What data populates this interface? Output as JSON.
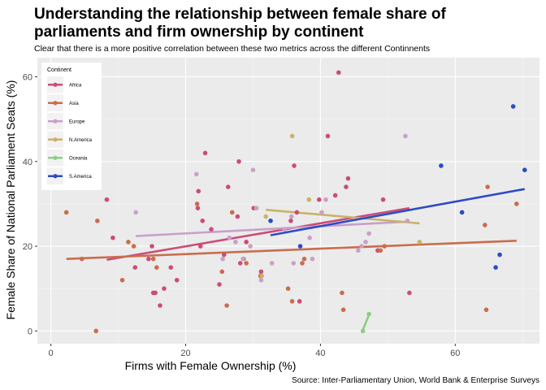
{
  "chart_data": {
    "type": "scatter",
    "title_line1": "Understanding the relationship between female share of",
    "title_line2": "parliaments and firm ownership by continent",
    "subtitle": "Clear that there is a more positive correlation between these two metrics across the different Continnents",
    "xlabel": "Firms with Female Ownership (%)",
    "ylabel": "Female Share of National Parliament Seats (%)",
    "caption": "Source: Inter-Parliamentary Union, World Bank & Enterprise Surveys",
    "xlim": [
      -2,
      72.5
    ],
    "ylim": [
      -3,
      64.5
    ],
    "xticks": [
      0,
      20,
      40,
      60
    ],
    "yticks": [
      0,
      20,
      40,
      60
    ],
    "grid": true,
    "legend": {
      "title": "Continent",
      "position": "top-left inside"
    },
    "series": [
      {
        "name": "Africa",
        "color": "#CC4C78",
        "points": [
          [
            8.3,
            31
          ],
          [
            9.2,
            22
          ],
          [
            12.5,
            15
          ],
          [
            14.5,
            17
          ],
          [
            15,
            20
          ],
          [
            15.2,
            9
          ],
          [
            15.5,
            9
          ],
          [
            16.2,
            6
          ],
          [
            16.8,
            10
          ],
          [
            17.8,
            15
          ],
          [
            18.7,
            12
          ],
          [
            21.8,
            29
          ],
          [
            21.9,
            33
          ],
          [
            22.2,
            20
          ],
          [
            22.5,
            26
          ],
          [
            22.9,
            42
          ],
          [
            23.8,
            24
          ],
          [
            25,
            11
          ],
          [
            25.7,
            18
          ],
          [
            26.3,
            34
          ],
          [
            27.9,
            40
          ],
          [
            27.7,
            27
          ],
          [
            28.1,
            16
          ],
          [
            29,
            21
          ],
          [
            30.1,
            29
          ],
          [
            31.2,
            14
          ],
          [
            35.6,
            26
          ],
          [
            36.1,
            39
          ],
          [
            36.5,
            28
          ],
          [
            36.9,
            7
          ],
          [
            39.8,
            31
          ],
          [
            41.1,
            46
          ],
          [
            42.2,
            32
          ],
          [
            42.7,
            61
          ],
          [
            43.8,
            34
          ],
          [
            44.1,
            36
          ],
          [
            48.5,
            19
          ],
          [
            49.3,
            31
          ],
          [
            53.2,
            9
          ]
        ],
        "fit": [
          [
            8.3,
            16.8
          ],
          [
            53.2,
            29.0
          ]
        ]
      },
      {
        "name": "Asia",
        "color": "#C96D4D",
        "points": [
          [
            2.3,
            28
          ],
          [
            4.6,
            17
          ],
          [
            6.7,
            0
          ],
          [
            6.9,
            26
          ],
          [
            10.6,
            12
          ],
          [
            11.5,
            21
          ],
          [
            12.3,
            20
          ],
          [
            15.2,
            17
          ],
          [
            15.7,
            15
          ],
          [
            21.7,
            30
          ],
          [
            25.4,
            14
          ],
          [
            26.1,
            6
          ],
          [
            26.9,
            28
          ],
          [
            28.6,
            17
          ],
          [
            29,
            16
          ],
          [
            31.1,
            13
          ],
          [
            35.2,
            10
          ],
          [
            35.8,
            7
          ],
          [
            37.3,
            16
          ],
          [
            37.6,
            17
          ],
          [
            43.2,
            9
          ],
          [
            43.4,
            5
          ],
          [
            48.9,
            19
          ],
          [
            49.5,
            20
          ],
          [
            64.4,
            25
          ],
          [
            64.8,
            34
          ],
          [
            64.6,
            5
          ],
          [
            69.1,
            30
          ]
        ],
        "fit": [
          [
            2.3,
            17.0
          ],
          [
            69.1,
            21.3
          ]
        ]
      },
      {
        "name": "Europe",
        "color": "#C9A0C8",
        "points": [
          [
            12.6,
            28
          ],
          [
            21.6,
            37
          ],
          [
            25.5,
            17
          ],
          [
            26.5,
            22
          ],
          [
            27.4,
            21
          ],
          [
            28.5,
            17
          ],
          [
            29.6,
            20
          ],
          [
            30,
            38
          ],
          [
            30.5,
            29
          ],
          [
            31.2,
            12
          ],
          [
            32.8,
            16
          ],
          [
            34.7,
            24
          ],
          [
            35.7,
            27
          ],
          [
            36,
            16
          ],
          [
            38.4,
            22
          ],
          [
            38.8,
            17
          ],
          [
            40.2,
            28
          ],
          [
            40.8,
            31
          ],
          [
            45.6,
            19
          ],
          [
            46.1,
            20
          ],
          [
            46.7,
            21
          ],
          [
            47.2,
            23
          ],
          [
            52.6,
            46
          ],
          [
            52.9,
            26
          ]
        ],
        "fit": [
          [
            12.6,
            22.4
          ],
          [
            52.9,
            25.8
          ]
        ]
      },
      {
        "name": "N.America",
        "color": "#C9B365",
        "points": [
          [
            31.3,
            13
          ],
          [
            31.9,
            27
          ],
          [
            35.8,
            46
          ],
          [
            38.3,
            31
          ],
          [
            54.7,
            21
          ]
        ],
        "fit": [
          [
            31.9,
            28.6
          ],
          [
            54.7,
            25.4
          ]
        ]
      },
      {
        "name": "Oceania",
        "color": "#8FCC85",
        "points": [
          [
            46.3,
            0
          ],
          [
            47.2,
            4
          ]
        ],
        "fit": [
          [
            46.3,
            0.3
          ],
          [
            47.2,
            3.8
          ]
        ]
      },
      {
        "name": "S.America",
        "color": "#2D4BC4",
        "points": [
          [
            32.6,
            26
          ],
          [
            37,
            20
          ],
          [
            57.9,
            39
          ],
          [
            61,
            28
          ],
          [
            66,
            15
          ],
          [
            66.6,
            18
          ],
          [
            68.6,
            53
          ],
          [
            70.3,
            38
          ]
        ],
        "fit": [
          [
            32.6,
            22.6
          ],
          [
            70.3,
            33.5
          ]
        ]
      }
    ]
  }
}
